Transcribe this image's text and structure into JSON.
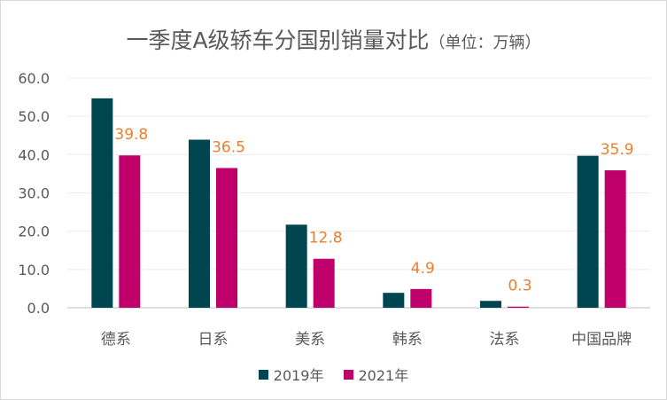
{
  "title": "一季度A级轿车分国别销量对比",
  "subtitle": "（单位：万辆）",
  "chart_data": {
    "type": "bar",
    "title": "一季度A级轿车分国别销量对比（单位：万辆）",
    "categories": [
      "德系",
      "日系",
      "美系",
      "韩系",
      "法系",
      "中国品牌"
    ],
    "series": [
      {
        "name": "2019年",
        "color": "#004650",
        "values": [
          54.7,
          43.9,
          21.7,
          3.9,
          1.8,
          39.7
        ]
      },
      {
        "name": "2021年",
        "color": "#C0006A",
        "values": [
          39.8,
          36.5,
          12.8,
          4.9,
          0.3,
          35.9
        ]
      }
    ],
    "data_labels": [
      "39.8",
      "36.5",
      "12.8",
      "4.9",
      "0.3",
      "35.9"
    ],
    "data_label_color": "#ED7D31",
    "y_ticks": [
      "0.0",
      "10.0",
      "20.0",
      "30.0",
      "40.0",
      "50.0",
      "60.0"
    ],
    "ylim": [
      0,
      60
    ],
    "grid": true,
    "legend_position": "bottom"
  }
}
